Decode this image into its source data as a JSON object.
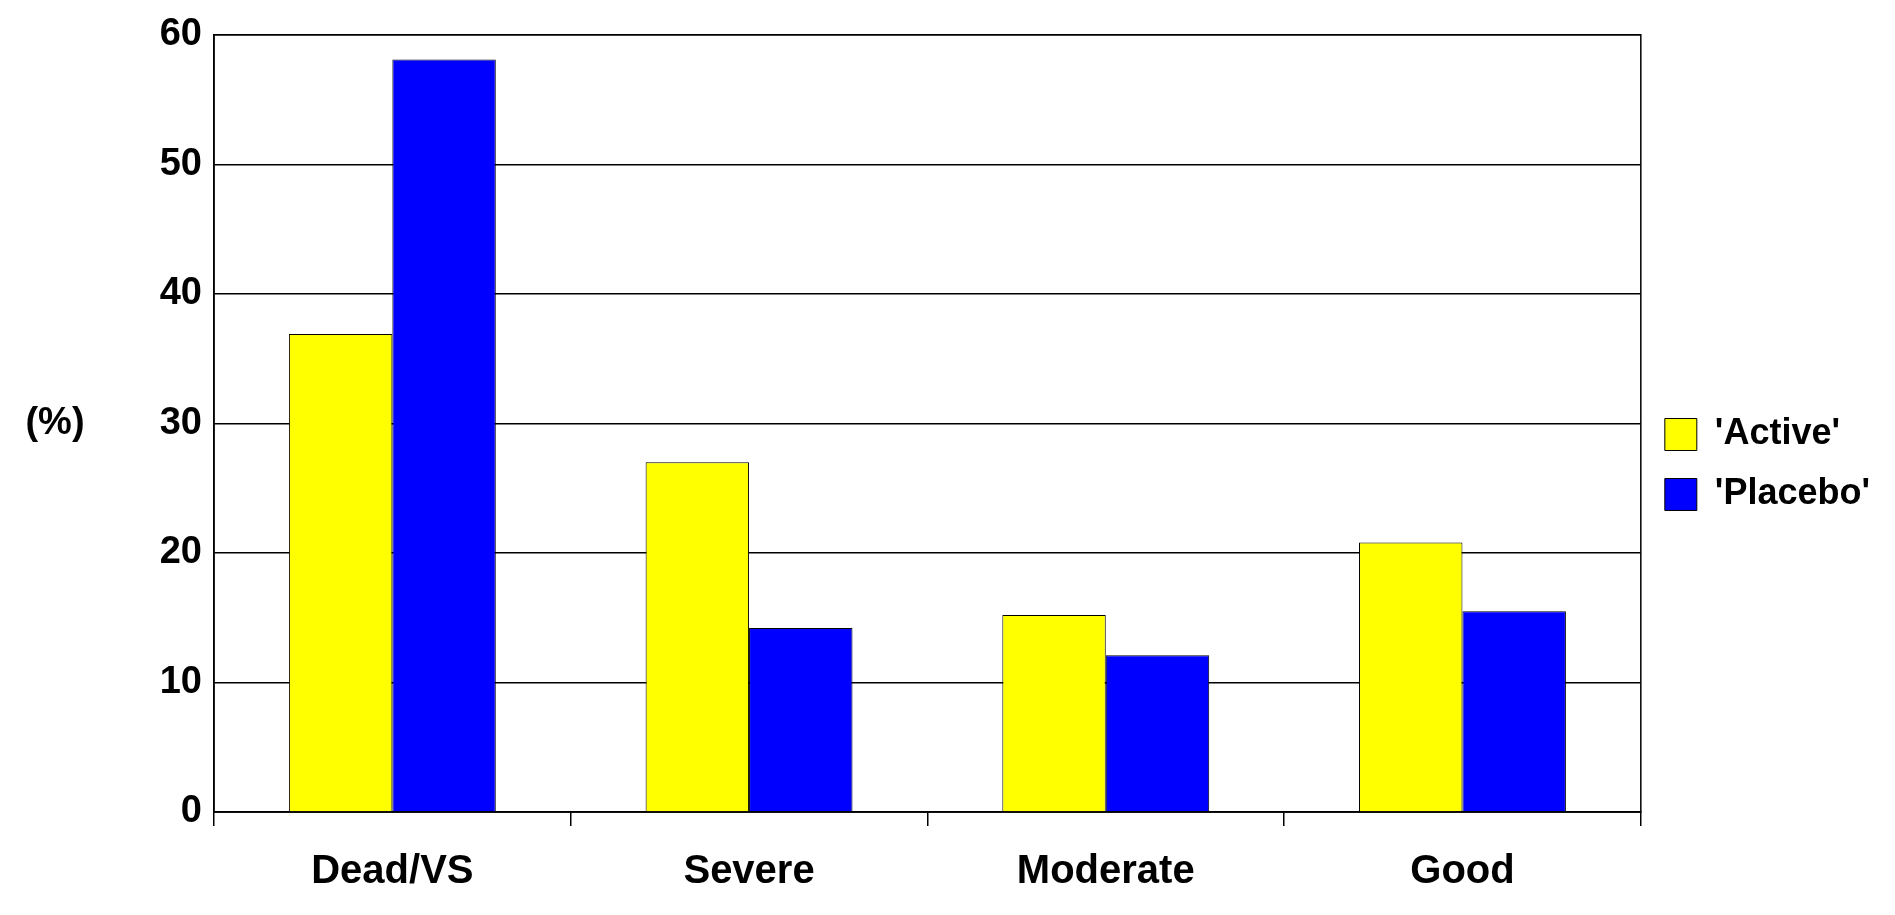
{
  "chart_data": {
    "type": "bar",
    "ylabel": "(%)",
    "categories": [
      "Dead/VS",
      "Severe",
      "Moderate",
      "Good"
    ],
    "series": [
      {
        "name": "'Active'",
        "color": "#ffff00",
        "values": [
          36.9,
          27.0,
          15.2,
          20.8
        ]
      },
      {
        "name": "'Placebo'",
        "color": "#0000ff",
        "values": [
          58.1,
          14.2,
          12.1,
          15.5
        ]
      }
    ],
    "ylim": [
      0,
      60
    ],
    "yticks": [
      0,
      10,
      20,
      30,
      40,
      50,
      60
    ],
    "grid": "y",
    "legend": "right"
  }
}
